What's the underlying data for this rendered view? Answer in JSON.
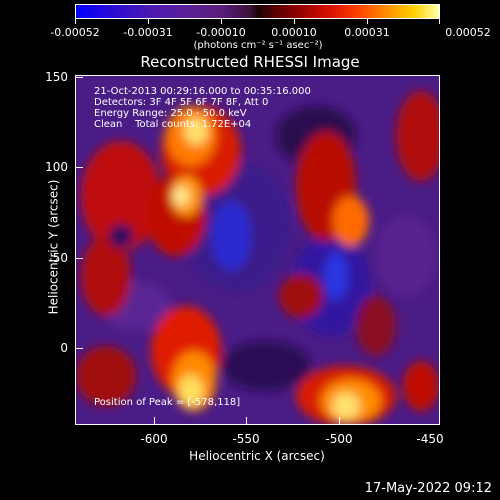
{
  "colorbar": {
    "tick_labels": [
      "-0.00052",
      "-0.00031",
      "-0.00010",
      "0.00010",
      "0.00031",
      "0.00052"
    ],
    "units": "(photons cm⁻² s⁻¹ asec⁻²)"
  },
  "title": "Reconstructed RHESSI Image",
  "info": {
    "line1": "21-Oct-2013 00:29:16.000 to 00:35:16.000",
    "line2": "Detectors: 3F 4F 5F 6F 7F 8F, Att 0",
    "line3": "Energy Range: 25.0 - 50.0 keV",
    "line4": "Clean    Total counts: 1.72E+04",
    "peak": "Position of Peak = [-578,118]"
  },
  "chart_data": {
    "type": "heatmap",
    "title": "Reconstructed RHESSI Image",
    "xlabel": "Heliocentric X (arcsec)",
    "ylabel": "Heliocentric Y (arcsec)",
    "xlim": [
      -645,
      -450
    ],
    "ylim": [
      -43,
      152
    ],
    "x_ticks": [
      "-600",
      "-550",
      "-500",
      "-450"
    ],
    "y_ticks": [
      "150",
      "100",
      "50",
      "0"
    ],
    "peak_position": [
      -578,
      118
    ],
    "colorbar_range": [
      -0.00052,
      0.00052
    ]
  },
  "footer": {
    "timestamp": "17-May-2022 09:12"
  }
}
